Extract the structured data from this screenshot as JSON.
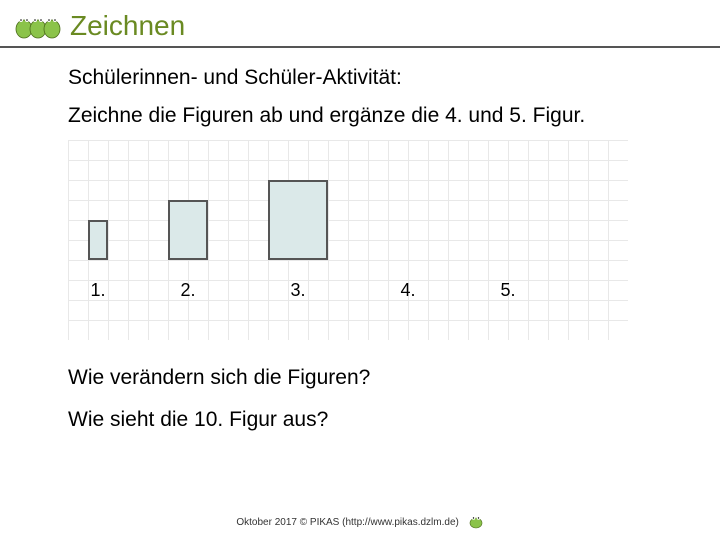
{
  "header": {
    "title": "Zeichnen"
  },
  "content": {
    "subtitle": "Schülerinnen- und Schüler-Aktivität:",
    "instruction": "Zeichne die Figuren ab und ergänze die 4. und 5. Figur.",
    "question1": "Wie verändern sich die Figuren?",
    "question2": "Wie sieht die 10. Figur aus?"
  },
  "grid": {
    "cell": 20,
    "baseline_row": 6,
    "label_row": 7,
    "figures": [
      {
        "label": "1.",
        "col": 1,
        "width": 1,
        "height": 2,
        "fill": "#dbe9e9",
        "border": "#555555"
      },
      {
        "label": "2.",
        "col": 5,
        "width": 2,
        "height": 3,
        "fill": "#dbe9e9",
        "border": "#555555"
      },
      {
        "label": "3.",
        "col": 10,
        "width": 3,
        "height": 4,
        "fill": "#dbe9e9",
        "border": "#555555"
      },
      {
        "label": "4.",
        "col": 17,
        "width": 0,
        "height": 0,
        "fill": "#dbe9e9",
        "border": "#555555"
      },
      {
        "label": "5.",
        "col": 22,
        "width": 0,
        "height": 0,
        "fill": "#dbe9e9",
        "border": "#555555"
      }
    ],
    "background": "#ffffff",
    "gridline_color": "#e8e8e8"
  },
  "footer": {
    "text": "Oktober 2017 © PIKAS (http://www.pikas.dzlm.de)"
  }
}
